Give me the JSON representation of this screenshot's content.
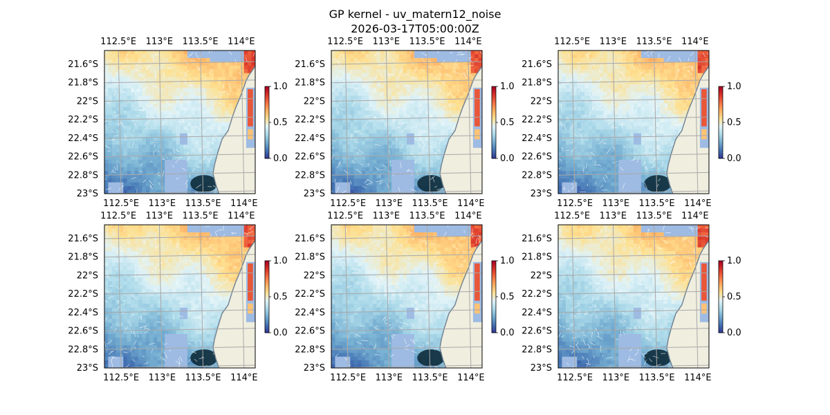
{
  "figure": {
    "title": "GP kernel - uv_matern12_noise",
    "subtitle": "2026-03-17T05:00:00Z"
  },
  "colors": {
    "land": "#efeedf",
    "masked_water": "#9ebbe3",
    "coast": "#6f7f8f",
    "grid": "#a8a8a8",
    "vectors": "#ffffff"
  },
  "colormap": {
    "name": "RdYlBu_r",
    "stops": [
      "#313695",
      "#4575b4",
      "#74add1",
      "#abd9e9",
      "#e0f3f8",
      "#fee090",
      "#fdae61",
      "#f46d43",
      "#d73027",
      "#a50026"
    ]
  },
  "chart_data": [
    {
      "type": "heatmap",
      "panel": "row 1, column 1",
      "projection": "lon-lat map",
      "xlim": [
        112.33,
        114.17
      ],
      "ylim": [
        -23.0,
        -21.45
      ],
      "x_ticks": [
        "112.5°E",
        "113°E",
        "113.5°E",
        "114°E"
      ],
      "y_ticks": [
        "21.6°S",
        "21.8°S",
        "22°S",
        "22.2°S",
        "22.4°S",
        "22.6°S",
        "22.8°S",
        "23°S"
      ],
      "x_tick_values": [
        112.5,
        113.0,
        113.5,
        114.0
      ],
      "y_tick_values": [
        -21.6,
        -21.8,
        -22.0,
        -22.2,
        -22.4,
        -22.6,
        -22.8,
        -23.0
      ],
      "colorbar": {
        "min": 0.0,
        "max": 1.0,
        "ticks": [
          "0.0",
          "0.5",
          "1.0"
        ],
        "colormap": "RdYlBu_r"
      },
      "overlay": "velocity vectors (white)",
      "grid": true,
      "seed": 11
    },
    {
      "type": "heatmap",
      "panel": "row 1, column 2",
      "projection": "lon-lat map",
      "xlim": [
        112.33,
        114.17
      ],
      "ylim": [
        -23.0,
        -21.45
      ],
      "x_ticks": [
        "112.5°E",
        "113°E",
        "113.5°E",
        "114°E"
      ],
      "y_ticks": [
        "21.6°S",
        "21.8°S",
        "22°S",
        "22.2°S",
        "22.4°S",
        "22.6°S",
        "22.8°S",
        "23°S"
      ],
      "x_tick_values": [
        112.5,
        113.0,
        113.5,
        114.0
      ],
      "y_tick_values": [
        -21.6,
        -21.8,
        -22.0,
        -22.2,
        -22.4,
        -22.6,
        -22.8,
        -23.0
      ],
      "colorbar": {
        "min": 0.0,
        "max": 1.0,
        "ticks": [
          "0.0",
          "0.5",
          "1.0"
        ],
        "colormap": "RdYlBu_r"
      },
      "overlay": "velocity vectors (white)",
      "grid": true,
      "seed": 23
    },
    {
      "type": "heatmap",
      "panel": "row 1, column 3",
      "projection": "lon-lat map",
      "xlim": [
        112.33,
        114.17
      ],
      "ylim": [
        -23.0,
        -21.45
      ],
      "x_ticks": [
        "112.5°E",
        "113°E",
        "113.5°E",
        "114°E"
      ],
      "y_ticks": [
        "21.6°S",
        "21.8°S",
        "22°S",
        "22.2°S",
        "22.4°S",
        "22.6°S",
        "22.8°S",
        "23°S"
      ],
      "x_tick_values": [
        112.5,
        113.0,
        113.5,
        114.0
      ],
      "y_tick_values": [
        -21.6,
        -21.8,
        -22.0,
        -22.2,
        -22.4,
        -22.6,
        -22.8,
        -23.0
      ],
      "colorbar": {
        "min": 0.0,
        "max": 1.0,
        "ticks": [
          "0.0",
          "0.5",
          "1.0"
        ],
        "colormap": "RdYlBu_r"
      },
      "overlay": "velocity vectors (white)",
      "grid": true,
      "seed": 37
    },
    {
      "type": "heatmap",
      "panel": "row 2, column 1",
      "projection": "lon-lat map",
      "xlim": [
        112.33,
        114.17
      ],
      "ylim": [
        -23.0,
        -21.45
      ],
      "x_ticks": [
        "112.5°E",
        "113°E",
        "113.5°E",
        "114°E"
      ],
      "y_ticks": [
        "21.6°S",
        "21.8°S",
        "22°S",
        "22.2°S",
        "22.4°S",
        "22.6°S",
        "22.8°S",
        "23°S"
      ],
      "x_tick_values": [
        112.5,
        113.0,
        113.5,
        114.0
      ],
      "y_tick_values": [
        -21.6,
        -21.8,
        -22.0,
        -22.2,
        -22.4,
        -22.6,
        -22.8,
        -23.0
      ],
      "colorbar": {
        "min": 0.0,
        "max": 1.0,
        "ticks": [
          "0.0",
          "0.5",
          "1.0"
        ],
        "colormap": "RdYlBu_r"
      },
      "overlay": "velocity vectors (white)",
      "grid": true,
      "seed": 41
    },
    {
      "type": "heatmap",
      "panel": "row 2, column 2",
      "projection": "lon-lat map",
      "xlim": [
        112.33,
        114.17
      ],
      "ylim": [
        -23.0,
        -21.45
      ],
      "x_ticks": [
        "112.5°E",
        "113°E",
        "113.5°E",
        "114°E"
      ],
      "y_ticks": [
        "21.6°S",
        "21.8°S",
        "22°S",
        "22.2°S",
        "22.4°S",
        "22.6°S",
        "22.8°S",
        "23°S"
      ],
      "x_tick_values": [
        112.5,
        113.0,
        113.5,
        114.0
      ],
      "y_tick_values": [
        -21.6,
        -21.8,
        -22.0,
        -22.2,
        -22.4,
        -22.6,
        -22.8,
        -23.0
      ],
      "colorbar": {
        "min": 0.0,
        "max": 1.0,
        "ticks": [
          "0.0",
          "0.5",
          "1.0"
        ],
        "colormap": "RdYlBu_r"
      },
      "overlay": "velocity vectors (white)",
      "grid": true,
      "seed": 53
    },
    {
      "type": "heatmap",
      "panel": "row 2, column 3",
      "projection": "lon-lat map",
      "xlim": [
        112.33,
        114.17
      ],
      "ylim": [
        -23.0,
        -21.45
      ],
      "x_ticks": [
        "112.5°E",
        "113°E",
        "113.5°E",
        "114°E"
      ],
      "y_ticks": [
        "21.6°S",
        "21.8°S",
        "22°S",
        "22.2°S",
        "22.4°S",
        "22.6°S",
        "22.8°S",
        "23°S"
      ],
      "x_tick_values": [
        112.5,
        113.0,
        113.5,
        114.0
      ],
      "y_tick_values": [
        -21.6,
        -21.8,
        -22.0,
        -22.2,
        -22.4,
        -22.6,
        -22.8,
        -23.0
      ],
      "colorbar": {
        "min": 0.0,
        "max": 1.0,
        "ticks": [
          "0.0",
          "0.5",
          "1.0"
        ],
        "colormap": "RdYlBu_r"
      },
      "overlay": "velocity vectors (white)",
      "grid": true,
      "seed": 67
    }
  ]
}
